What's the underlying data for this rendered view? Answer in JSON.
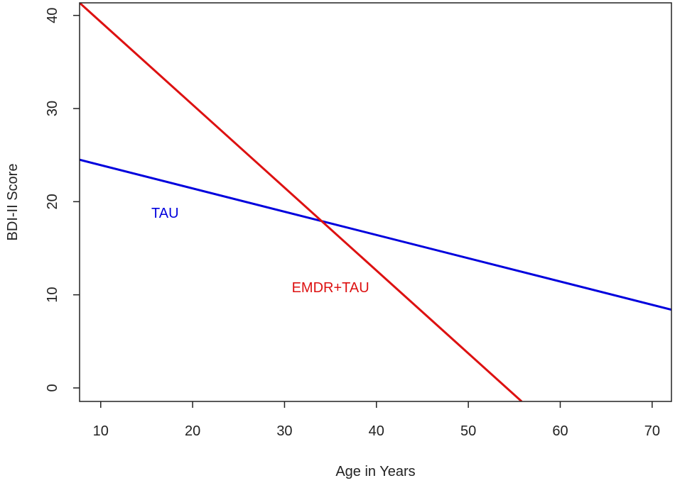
{
  "chart_data": {
    "type": "line",
    "title": "",
    "xlabel": "Age in Years",
    "ylabel": "BDI-II Score",
    "xlim": [
      7.7,
      72.1
    ],
    "ylim": [
      -1.45,
      41.35
    ],
    "x_ticks": [
      10,
      20,
      30,
      40,
      50,
      60,
      70
    ],
    "y_ticks": [
      0,
      10,
      20,
      30,
      40
    ],
    "grid": false,
    "legend": "none",
    "series": [
      {
        "name": "TAU",
        "color": "#0000dd",
        "x": [
          7.7,
          72.1
        ],
        "y": [
          24.5,
          8.4
        ],
        "label_position": {
          "x": 17,
          "y": 18.8
        }
      },
      {
        "name": "EMDR+TAU",
        "color": "#dd1111",
        "x": [
          7.7,
          55.8
        ],
        "y": [
          41.35,
          -1.45
        ],
        "label_position": {
          "x": 35,
          "y": 10.8
        }
      }
    ]
  }
}
